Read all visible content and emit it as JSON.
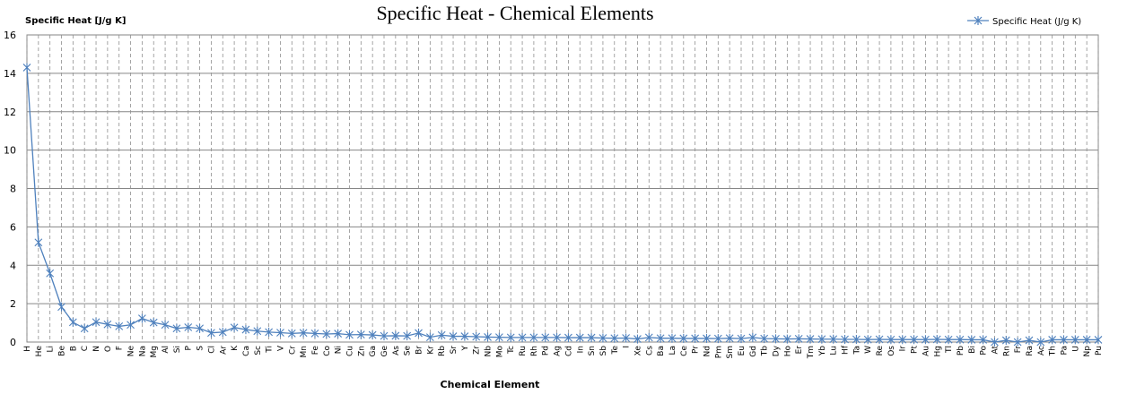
{
  "chart_data": {
    "type": "line",
    "title": "Specific Heat - Chemical Elements",
    "xlabel": "Chemical Element",
    "ylabel": "Specific Heat [J/g K]",
    "ylim": [
      0,
      16
    ],
    "yticks": [
      0,
      2,
      4,
      6,
      8,
      10,
      12,
      14,
      16
    ],
    "grid": true,
    "legend_position": "top-right",
    "categories": [
      "H",
      "He",
      "Li",
      "Be",
      "B",
      "C",
      "N",
      "O",
      "F",
      "Ne",
      "Na",
      "Mg",
      "Al",
      "Si",
      "P",
      "S",
      "Cl",
      "Ar",
      "K",
      "Ca",
      "Sc",
      "Ti",
      "V",
      "Cr",
      "Mn",
      "Fe",
      "Co",
      "Ni",
      "Cu",
      "Zn",
      "Ga",
      "Ge",
      "As",
      "Se",
      "Br",
      "Kr",
      "Rb",
      "Sr",
      "Y",
      "Zr",
      "Nb",
      "Mo",
      "Tc",
      "Ru",
      "Rh",
      "Pd",
      "Ag",
      "Cd",
      "In",
      "Sn",
      "Sb",
      "Te",
      "I",
      "Xe",
      "Cs",
      "Ba",
      "La",
      "Ce",
      "Pr",
      "Nd",
      "Pm",
      "Sm",
      "Eu",
      "Gd",
      "Tb",
      "Dy",
      "Ho",
      "Er",
      "Tm",
      "Yb",
      "Lu",
      "Hf",
      "Ta",
      "W",
      "Re",
      "Os",
      "Ir",
      "Pt",
      "Au",
      "Hg",
      "Tl",
      "Pb",
      "Bi",
      "Po",
      "At",
      "Rn",
      "Fr",
      "Ra",
      "Ac",
      "Th",
      "Pa",
      "U",
      "Np",
      "Pu"
    ],
    "series": [
      {
        "name": "Specific Heat (J/g K)",
        "color": "#4f81bd",
        "values": [
          14.3,
          5.19,
          3.58,
          1.83,
          1.03,
          0.71,
          1.04,
          0.92,
          0.82,
          0.9,
          1.23,
          1.02,
          0.9,
          0.71,
          0.77,
          0.71,
          0.48,
          0.52,
          0.76,
          0.65,
          0.57,
          0.52,
          0.49,
          0.45,
          0.48,
          0.45,
          0.42,
          0.44,
          0.38,
          0.39,
          0.37,
          0.32,
          0.33,
          0.32,
          0.47,
          0.25,
          0.36,
          0.3,
          0.3,
          0.28,
          0.26,
          0.25,
          0.24,
          0.24,
          0.24,
          0.24,
          0.24,
          0.23,
          0.23,
          0.23,
          0.21,
          0.2,
          0.21,
          0.16,
          0.24,
          0.2,
          0.2,
          0.19,
          0.19,
          0.19,
          0.18,
          0.2,
          0.18,
          0.24,
          0.18,
          0.17,
          0.16,
          0.17,
          0.16,
          0.15,
          0.15,
          0.14,
          0.14,
          0.13,
          0.14,
          0.13,
          0.13,
          0.13,
          0.13,
          0.14,
          0.13,
          0.13,
          0.12,
          0.12,
          0.0,
          0.09,
          0.0,
          0.09,
          0.0,
          0.12,
          0.12,
          0.12,
          0.12,
          0.12
        ]
      }
    ]
  }
}
